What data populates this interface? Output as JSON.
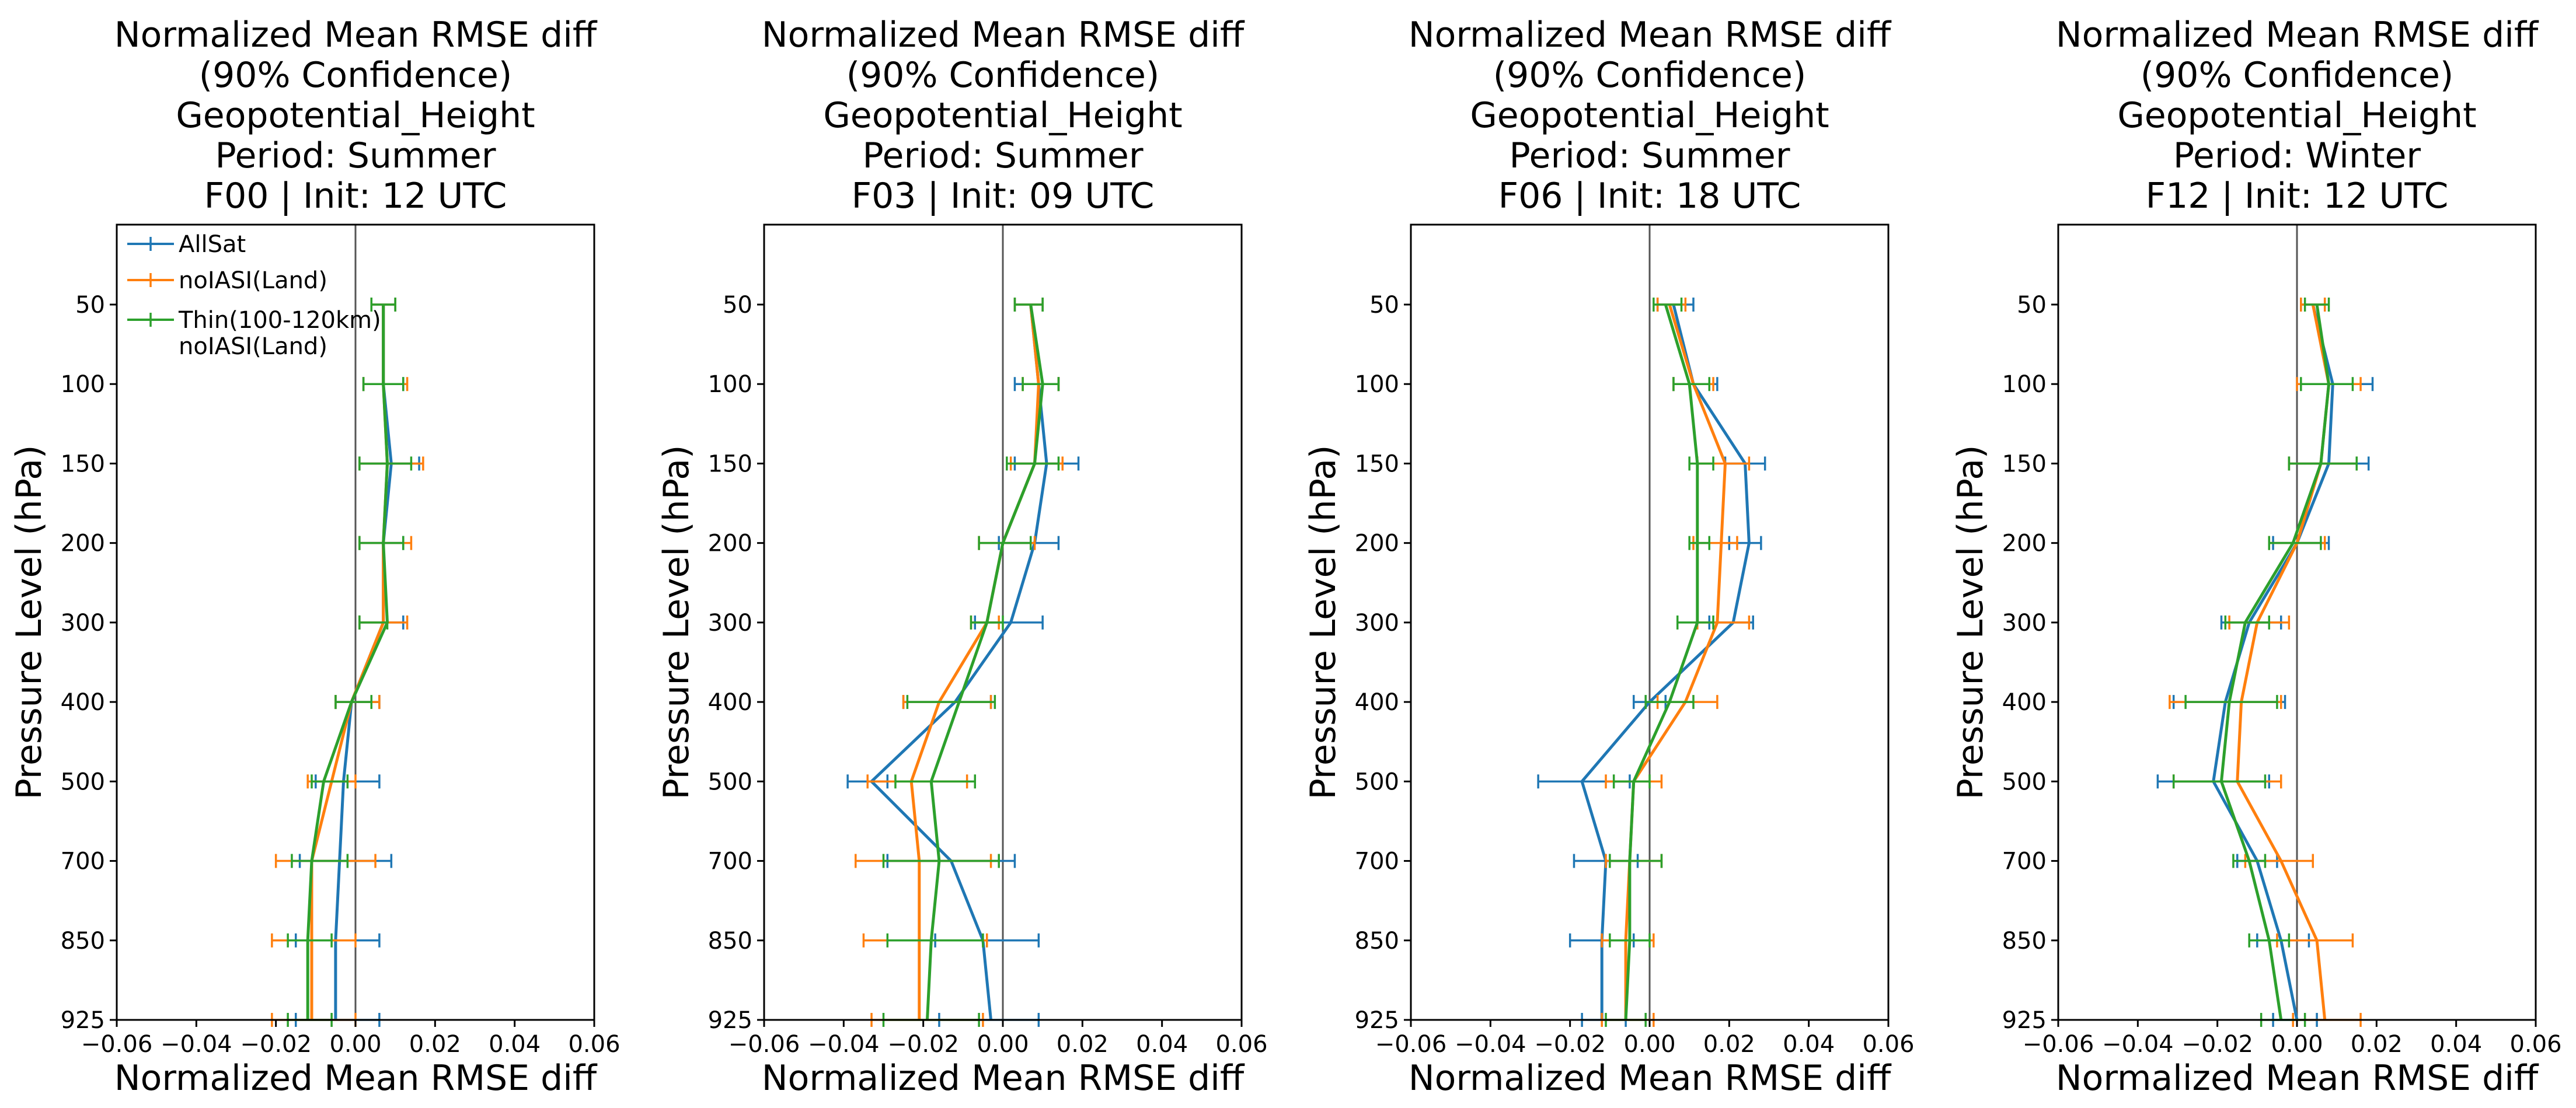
{
  "figure": {
    "x_axis_label": "Normalized Mean RMSE diff",
    "y_axis_label": "Pressure Level (hPa)"
  },
  "chart_data": [
    {
      "type": "line",
      "orientation": "vertical-profile-with-error-bars",
      "title": [
        "Normalized Mean RMSE diff",
        "(90% Confidence)",
        "Geopotential_Height",
        "Period: Summer",
        "F00 | Init: 12 UTC"
      ],
      "xlabel": "Normalized Mean RMSE diff",
      "ylabel": "Pressure Level (hPa)",
      "xlim": [
        -0.06,
        0.06
      ],
      "x_ticks": [
        "−0.06",
        "−0.04",
        "−0.02",
        "0.00",
        "0.02",
        "0.04",
        "0.06"
      ],
      "y_levels": [
        50,
        100,
        150,
        200,
        300,
        400,
        500,
        700,
        850,
        925
      ],
      "y_tick_labels": [
        "50",
        "100",
        "150",
        "200",
        "300",
        "400",
        "500",
        "700",
        "850",
        "925"
      ],
      "legend": {
        "location": "upper-left",
        "entries": [
          "AllSat",
          "noIASI(Land)",
          "Thin(100-120km)\nnoIASI(Land)"
        ]
      },
      "series": [
        {
          "name": "AllSat",
          "color": "#1f77b4",
          "values": [
            0.007,
            0.007,
            0.009,
            0.007,
            0.007,
            -0.001,
            -0.003,
            -0.004,
            -0.005,
            -0.005
          ],
          "ci_low": [
            0.004,
            0.002,
            0.001,
            0.001,
            0.001,
            -0.005,
            -0.01,
            -0.014,
            -0.015,
            -0.015
          ],
          "ci_high": [
            0.01,
            0.012,
            0.016,
            0.012,
            0.012,
            0.006,
            0.006,
            0.009,
            0.006,
            0.006
          ]
        },
        {
          "name": "noIASI(Land)",
          "color": "#ff7f0e",
          "values": [
            0.007,
            0.007,
            0.008,
            0.007,
            0.007,
            -0.001,
            -0.006,
            -0.011,
            -0.011,
            -0.011
          ],
          "ci_low": [
            0.004,
            0.002,
            0.001,
            0.001,
            0.001,
            -0.005,
            -0.012,
            -0.02,
            -0.021,
            -0.021
          ],
          "ci_high": [
            0.01,
            0.013,
            0.017,
            0.014,
            0.013,
            0.006,
            0.0,
            0.005,
            0.0,
            0.0
          ]
        },
        {
          "name": "Thin(100-120km)\nnoIASI(Land)",
          "color": "#2ca02c",
          "values": [
            0.007,
            0.007,
            0.008,
            0.007,
            0.008,
            -0.001,
            -0.008,
            -0.011,
            -0.012,
            -0.012
          ],
          "ci_low": [
            0.004,
            0.002,
            0.001,
            0.001,
            0.001,
            -0.005,
            -0.011,
            -0.016,
            -0.017,
            -0.017
          ],
          "ci_high": [
            0.01,
            0.012,
            0.014,
            0.012,
            0.008,
            0.004,
            -0.002,
            -0.002,
            -0.006,
            -0.006
          ]
        }
      ]
    },
    {
      "type": "line",
      "orientation": "vertical-profile-with-error-bars",
      "title": [
        "Normalized Mean RMSE diff",
        "(90% Confidence)",
        "Geopotential_Height",
        "Period: Summer",
        "F03 | Init: 09 UTC"
      ],
      "xlabel": "Normalized Mean RMSE diff",
      "ylabel": "Pressure Level (hPa)",
      "xlim": [
        -0.06,
        0.06
      ],
      "x_ticks": [
        "−0.06",
        "−0.04",
        "−0.02",
        "0.00",
        "0.02",
        "0.04",
        "0.06"
      ],
      "y_levels": [
        50,
        100,
        150,
        200,
        300,
        400,
        500,
        700,
        850,
        925
      ],
      "y_tick_labels": [
        "50",
        "100",
        "150",
        "200",
        "300",
        "400",
        "500",
        "700",
        "850",
        "925"
      ],
      "series": [
        {
          "name": "AllSat",
          "color": "#1f77b4",
          "values": [
            0.007,
            0.009,
            0.011,
            0.008,
            0.002,
            -0.012,
            -0.033,
            -0.013,
            -0.005,
            -0.003
          ],
          "ci_low": [
            0.003,
            0.003,
            0.003,
            -0.001,
            -0.007,
            -0.025,
            -0.039,
            -0.029,
            -0.017,
            -0.016
          ],
          "ci_high": [
            0.01,
            0.014,
            0.019,
            0.014,
            0.01,
            -0.003,
            -0.029,
            0.003,
            0.009,
            0.009
          ]
        },
        {
          "name": "noIASI(Land)",
          "color": "#ff7f0e",
          "values": [
            0.007,
            0.009,
            0.008,
            0.0,
            -0.004,
            -0.016,
            -0.023,
            -0.021,
            -0.021,
            -0.021
          ],
          "ci_low": [
            0.003,
            0.005,
            0.002,
            -0.006,
            -0.008,
            -0.025,
            -0.034,
            -0.037,
            -0.035,
            -0.033
          ],
          "ci_high": [
            0.01,
            0.014,
            0.015,
            0.008,
            -0.001,
            -0.003,
            -0.009,
            -0.003,
            -0.004,
            -0.005
          ]
        },
        {
          "name": "Thin(100-120km)\nnoIASI(Land)",
          "color": "#2ca02c",
          "values": [
            0.007,
            0.01,
            0.008,
            0.0,
            -0.004,
            -0.011,
            -0.018,
            -0.016,
            -0.018,
            -0.019
          ],
          "ci_low": [
            0.003,
            0.005,
            0.001,
            -0.006,
            -0.008,
            -0.024,
            -0.027,
            -0.03,
            -0.029,
            -0.03
          ],
          "ci_high": [
            0.01,
            0.014,
            0.014,
            0.007,
            0.0,
            -0.002,
            -0.007,
            -0.001,
            -0.005,
            -0.006
          ]
        }
      ]
    },
    {
      "type": "line",
      "orientation": "vertical-profile-with-error-bars",
      "title": [
        "Normalized Mean RMSE diff",
        "(90% Confidence)",
        "Geopotential_Height",
        "Period: Summer",
        "F06 | Init: 18 UTC"
      ],
      "xlabel": "Normalized Mean RMSE diff",
      "ylabel": "Pressure Level (hPa)",
      "xlim": [
        -0.06,
        0.06
      ],
      "x_ticks": [
        "−0.06",
        "−0.04",
        "−0.02",
        "0.00",
        "0.02",
        "0.04",
        "0.06"
      ],
      "y_levels": [
        50,
        100,
        150,
        200,
        300,
        400,
        500,
        700,
        850,
        925
      ],
      "y_tick_labels": [
        "50",
        "100",
        "150",
        "200",
        "300",
        "400",
        "500",
        "700",
        "850",
        "925"
      ],
      "series": [
        {
          "name": "AllSat",
          "color": "#1f77b4",
          "values": [
            0.006,
            0.011,
            0.024,
            0.025,
            0.021,
            0.0,
            -0.017,
            -0.011,
            -0.012,
            -0.012
          ],
          "ci_low": [
            0.002,
            0.006,
            0.019,
            0.02,
            0.015,
            -0.004,
            -0.028,
            -0.019,
            -0.02,
            -0.017
          ],
          "ci_high": [
            0.011,
            0.017,
            0.029,
            0.028,
            0.026,
            0.004,
            -0.005,
            -0.003,
            -0.004,
            -0.006
          ]
        },
        {
          "name": "noIASI(Land)",
          "color": "#ff7f0e",
          "values": [
            0.005,
            0.011,
            0.019,
            0.018,
            0.017,
            0.009,
            -0.004,
            -0.005,
            -0.006,
            -0.006
          ],
          "ci_low": [
            0.002,
            0.006,
            0.012,
            0.011,
            0.012,
            0.002,
            -0.011,
            -0.011,
            -0.012,
            -0.012
          ],
          "ci_high": [
            0.009,
            0.016,
            0.025,
            0.022,
            0.025,
            0.017,
            0.003,
            0.003,
            0.001,
            0.001
          ]
        },
        {
          "name": "Thin(100-120km)\nnoIASI(Land)",
          "color": "#2ca02c",
          "values": [
            0.004,
            0.01,
            0.012,
            0.012,
            0.012,
            0.005,
            -0.004,
            -0.005,
            -0.005,
            -0.006
          ],
          "ci_low": [
            0.001,
            0.006,
            0.01,
            0.01,
            0.007,
            -0.001,
            -0.009,
            -0.01,
            -0.01,
            -0.011
          ],
          "ci_high": [
            0.008,
            0.015,
            0.016,
            0.015,
            0.016,
            0.011,
            0.0,
            0.003,
            0.0,
            -0.001
          ]
        }
      ]
    },
    {
      "type": "line",
      "orientation": "vertical-profile-with-error-bars",
      "title": [
        "Normalized Mean RMSE diff",
        "(90% Confidence)",
        "Geopotential_Height",
        "Period: Winter",
        "F12 | Init: 12 UTC"
      ],
      "xlabel": "Normalized Mean RMSE diff",
      "ylabel": "Pressure Level (hPa)",
      "xlim": [
        -0.06,
        0.06
      ],
      "x_ticks": [
        "−0.06",
        "−0.04",
        "−0.02",
        "0.00",
        "0.02",
        "0.04",
        "0.06"
      ],
      "y_levels": [
        50,
        100,
        150,
        200,
        300,
        400,
        500,
        700,
        850,
        925
      ],
      "y_tick_labels": [
        "50",
        "100",
        "150",
        "200",
        "300",
        "400",
        "500",
        "700",
        "850",
        "925"
      ],
      "series": [
        {
          "name": "AllSat",
          "color": "#1f77b4",
          "values": [
            0.004,
            0.009,
            0.008,
            0.0,
            -0.012,
            -0.018,
            -0.021,
            -0.01,
            -0.004,
            0.0
          ],
          "ci_low": [
            0.001,
            0.0,
            -0.002,
            -0.006,
            -0.019,
            -0.031,
            -0.035,
            -0.015,
            -0.01,
            -0.006
          ],
          "ci_high": [
            0.007,
            0.019,
            0.018,
            0.008,
            -0.004,
            -0.003,
            -0.007,
            -0.005,
            0.003,
            0.005
          ]
        },
        {
          "name": "noIASI(Land)",
          "color": "#ff7f0e",
          "values": [
            0.004,
            0.008,
            0.006,
            0.0,
            -0.01,
            -0.014,
            -0.015,
            -0.004,
            0.005,
            0.007
          ],
          "ci_low": [
            0.001,
            0.0,
            -0.002,
            -0.007,
            -0.017,
            -0.032,
            -0.031,
            -0.013,
            -0.005,
            -0.001
          ],
          "ci_high": [
            0.007,
            0.016,
            0.015,
            0.007,
            -0.002,
            -0.004,
            -0.004,
            0.004,
            0.014,
            0.016
          ]
        },
        {
          "name": "Thin(100-120km)\nnoIASI(Land)",
          "color": "#2ca02c",
          "values": [
            0.005,
            0.008,
            0.006,
            -0.001,
            -0.013,
            -0.017,
            -0.019,
            -0.012,
            -0.007,
            -0.004
          ],
          "ci_low": [
            0.002,
            0.001,
            -0.002,
            -0.007,
            -0.018,
            -0.028,
            -0.031,
            -0.016,
            -0.012,
            -0.009
          ],
          "ci_high": [
            0.008,
            0.014,
            0.015,
            0.006,
            -0.007,
            -0.005,
            -0.008,
            -0.008,
            -0.002,
            0.002
          ]
        }
      ]
    }
  ]
}
